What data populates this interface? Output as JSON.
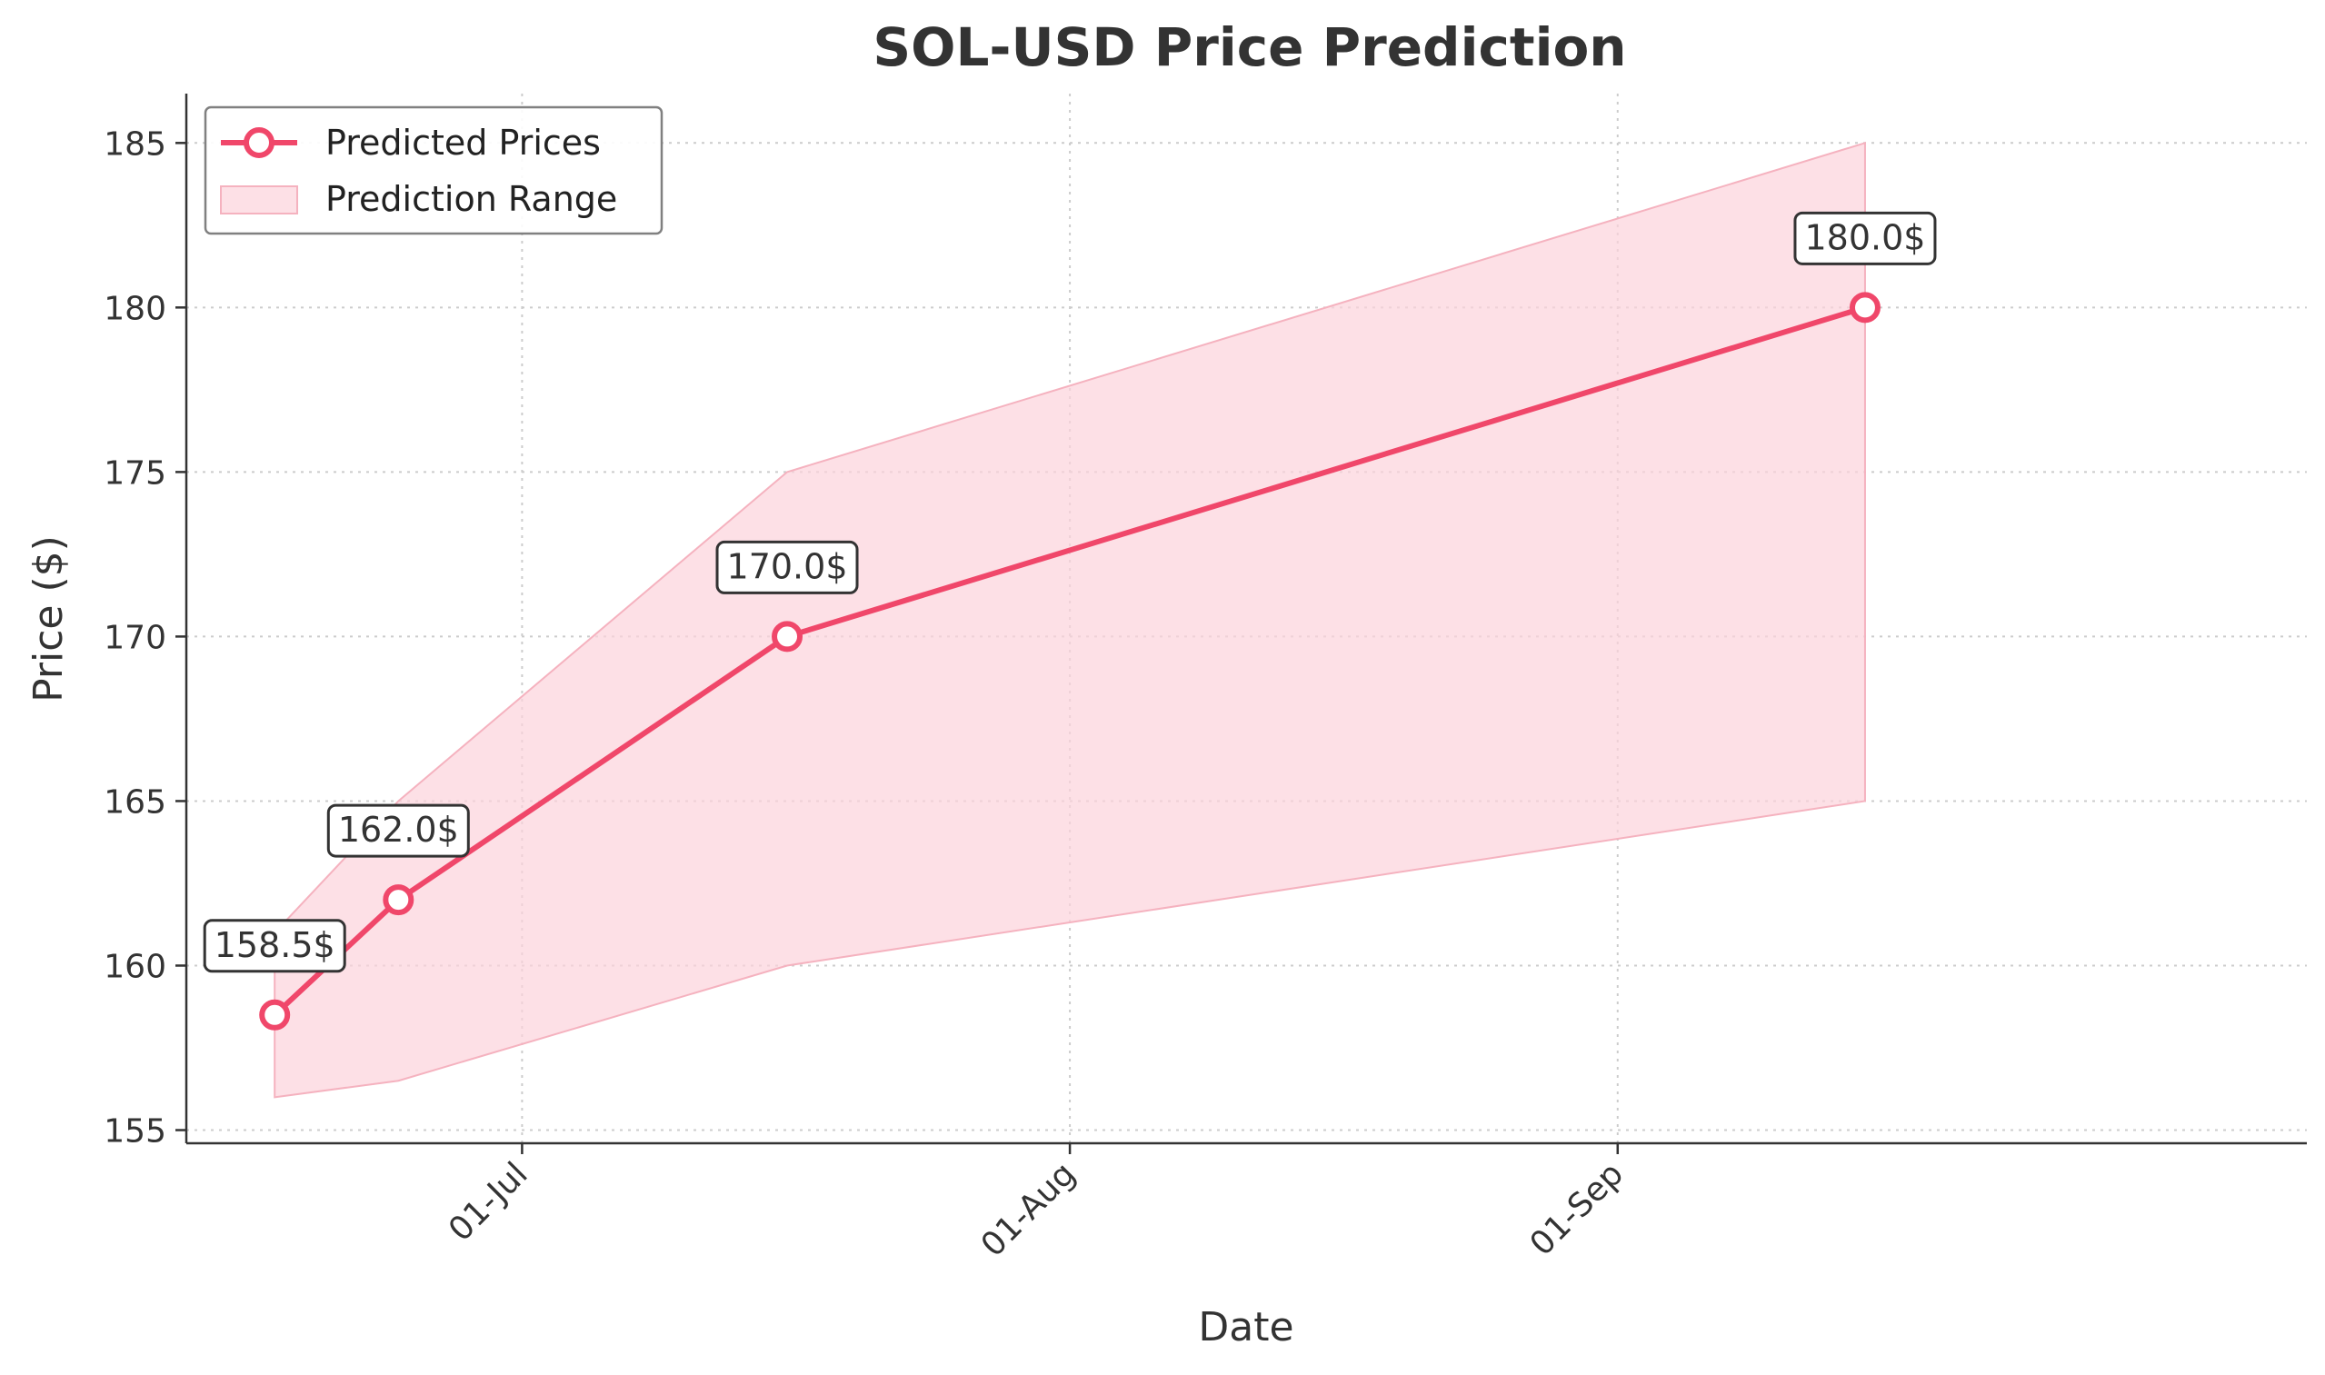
{
  "chart_data": {
    "type": "line",
    "title": "SOL-USD Price Prediction",
    "xlabel": "Date",
    "ylabel": "Price ($)",
    "x_ticks": [
      {
        "date": "2025-07-01",
        "label": "01-Jul"
      },
      {
        "date": "2025-08-01",
        "label": "01-Aug"
      },
      {
        "date": "2025-09-01",
        "label": "01-Sep"
      }
    ],
    "y_ticks": [
      155,
      160,
      165,
      170,
      175,
      180,
      185
    ],
    "xlim": [
      "2025-06-12",
      "2025-10-10"
    ],
    "ylim": [
      154.6,
      186.5
    ],
    "grid": true,
    "legend_position": "top-left",
    "series": [
      {
        "name": "Predicted Prices",
        "kind": "line",
        "color": "#f0476a",
        "dates": [
          "2025-06-17",
          "2025-06-24",
          "2025-07-16",
          "2025-09-15"
        ],
        "values": [
          158.5,
          162.0,
          170.0,
          180.0
        ],
        "labels": [
          "158.5$",
          "162.0$",
          "170.0$",
          "180.0$"
        ]
      },
      {
        "name": "Prediction Range",
        "kind": "area",
        "color": "#fcd3db",
        "dates": [
          "2025-06-17",
          "2025-06-24",
          "2025-07-16",
          "2025-09-15"
        ],
        "lower": [
          156.0,
          156.5,
          160.0,
          165.0
        ],
        "upper": [
          161.0,
          165.0,
          175.0,
          185.0
        ]
      }
    ]
  }
}
